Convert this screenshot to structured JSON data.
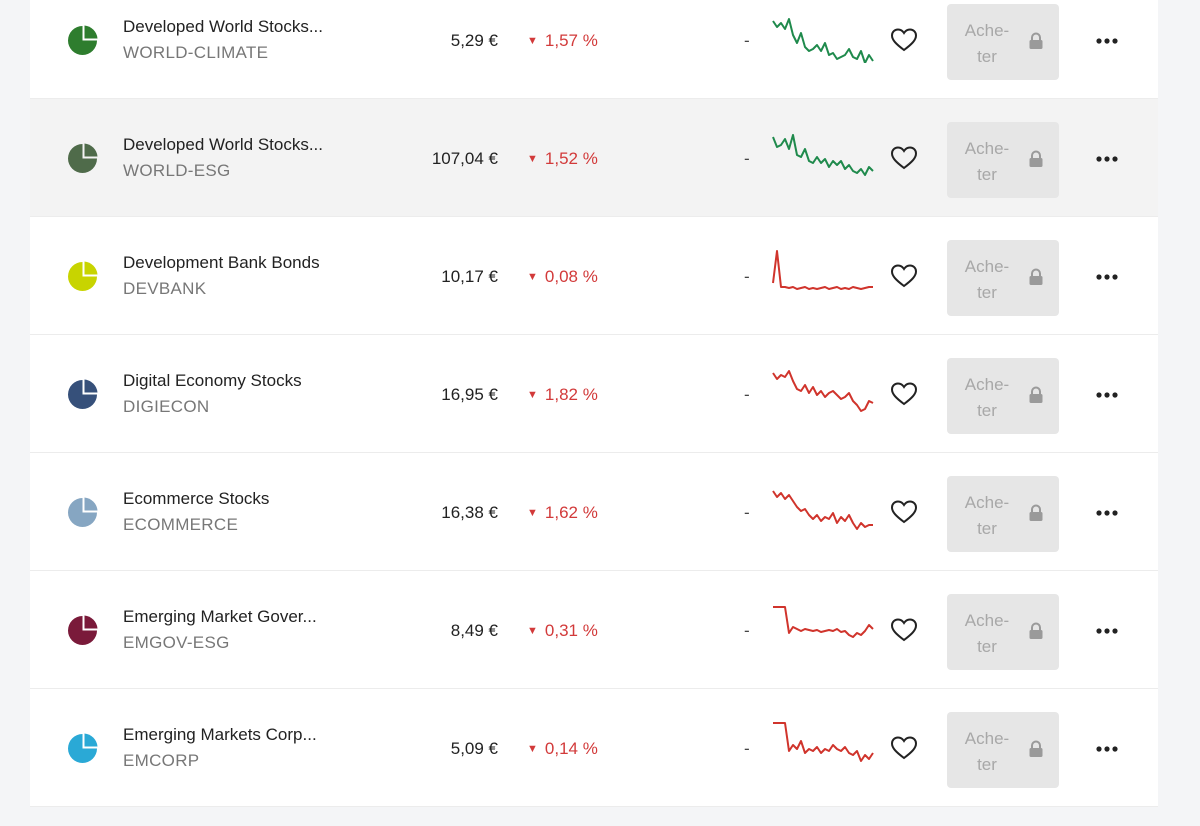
{
  "buy_button_label": "Ache-\nter",
  "rows": [
    {
      "name": "Developed World Stocks...",
      "ticker": "WORLD-CLIMATE",
      "price": "5,29 €",
      "change": "1,57 %",
      "perf": "-",
      "icon_color": "#2e7d2e",
      "trend": "up",
      "spark_color": "#1f8a4c",
      "sparkline": [
        14,
        20,
        16,
        22,
        12,
        28,
        36,
        26,
        40,
        44,
        42,
        38,
        44,
        36,
        48,
        46,
        52,
        50,
        48,
        42,
        50,
        52,
        44,
        56,
        48,
        54
      ],
      "highlighted": false
    },
    {
      "name": "Developed World Stocks...",
      "ticker": "WORLD-ESG",
      "price": "107,04 €",
      "change": "1,52 %",
      "perf": "-",
      "icon_color": "#4f6b4a",
      "trend": "up",
      "spark_color": "#1f8a4c",
      "sparkline": [
        12,
        22,
        20,
        14,
        24,
        10,
        30,
        32,
        24,
        36,
        38,
        32,
        38,
        34,
        42,
        36,
        40,
        36,
        44,
        40,
        46,
        48,
        44,
        50,
        42,
        46
      ],
      "highlighted": true
    },
    {
      "name": "Development Bank Bonds",
      "ticker": "DEVBANK",
      "price": "10,17 €",
      "change": "0,08 %",
      "perf": "-",
      "icon_color": "#c8d400",
      "trend": "down",
      "spark_color": "#d0342c",
      "sparkline": [
        40,
        8,
        44,
        44,
        45,
        44,
        46,
        45,
        44,
        46,
        45,
        46,
        45,
        44,
        46,
        45,
        44,
        46,
        45,
        46,
        44,
        45,
        46,
        45,
        44,
        44
      ],
      "highlighted": false
    },
    {
      "name": "Digital Economy Stocks",
      "ticker": "DIGIECON",
      "price": "16,95 €",
      "change": "1,82 %",
      "perf": "-",
      "icon_color": "#36507a",
      "trend": "down",
      "spark_color": "#d0342c",
      "sparkline": [
        12,
        18,
        14,
        16,
        10,
        20,
        28,
        30,
        24,
        32,
        26,
        34,
        30,
        36,
        32,
        30,
        34,
        38,
        36,
        32,
        40,
        44,
        50,
        48,
        40,
        42
      ],
      "highlighted": false
    },
    {
      "name": "Ecommerce Stocks",
      "ticker": "ECOMMERCE",
      "price": "16,38 €",
      "change": "1,62 %",
      "perf": "-",
      "icon_color": "#86a6c2",
      "trend": "down",
      "spark_color": "#d0342c",
      "sparkline": [
        12,
        18,
        14,
        20,
        16,
        22,
        28,
        32,
        30,
        36,
        40,
        36,
        42,
        38,
        40,
        34,
        44,
        38,
        42,
        36,
        44,
        50,
        44,
        48,
        46,
        46
      ],
      "highlighted": false
    },
    {
      "name": "Emerging Market Gover...",
      "ticker": "EMGOV-ESG",
      "price": "8,49 €",
      "change": "0,31 %",
      "perf": "-",
      "icon_color": "#7a1a3a",
      "trend": "down",
      "spark_color": "#d0342c",
      "sparkline": [
        10,
        10,
        10,
        10,
        36,
        30,
        32,
        34,
        32,
        33,
        34,
        33,
        35,
        34,
        33,
        34,
        32,
        35,
        34,
        38,
        40,
        36,
        38,
        34,
        28,
        32
      ],
      "highlighted": false
    },
    {
      "name": "Emerging Markets Corp...",
      "ticker": "EMCORP",
      "price": "5,09 €",
      "change": "0,14 %",
      "perf": "-",
      "icon_color": "#2aa9d6",
      "trend": "down",
      "spark_color": "#d0342c",
      "sparkline": [
        8,
        8,
        8,
        8,
        36,
        30,
        34,
        26,
        38,
        34,
        36,
        32,
        38,
        34,
        36,
        30,
        34,
        36,
        32,
        38,
        40,
        36,
        46,
        40,
        44,
        38
      ],
      "highlighted": false
    }
  ]
}
